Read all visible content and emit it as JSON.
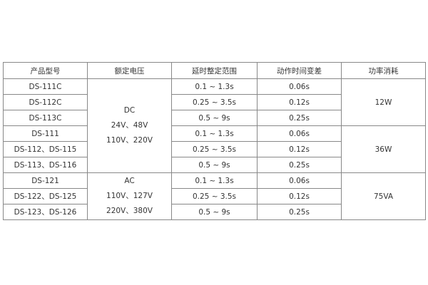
{
  "headers": [
    "产品型号",
    "额定电压",
    "延时整定范围",
    "动作时间变差",
    "功率消耗"
  ],
  "rows": [
    {
      "model": "DS-111C",
      "range": "0.1 ~ 1.3s",
      "variation": "0.06s"
    },
    {
      "model": "DS-112C",
      "range": "0.25 ~ 3.5s",
      "variation": "0.12s"
    },
    {
      "model": "DS-113C",
      "range": "0.5 ~ 9s",
      "variation": "0.25s"
    },
    {
      "model": "DS-111",
      "range": "0.1 ~ 1.3s",
      "variation": "0.06s"
    },
    {
      "model": "DS-112、DS-115",
      "range": "0.25 ~ 3.5s",
      "variation": "0.12s"
    },
    {
      "model": "DS-113、DS-116",
      "range": "0.5 ~ 9s",
      "variation": "0.25s"
    },
    {
      "model": "DS-121",
      "range": "0.1 ~ 1.3s",
      "variation": "0.06s"
    },
    {
      "model": "DS-122、DS-125",
      "range": "0.25 ~ 3.5s",
      "variation": "0.12s"
    },
    {
      "model": "DS-123、DS-126",
      "range": "0.5 ~ 9s",
      "variation": "0.25s"
    }
  ],
  "voltage": [
    {
      "lines": [
        "DC",
        "24V、48V",
        "110V、220V"
      ]
    },
    {
      "lines": [
        "AC",
        "110V、127V",
        "220V、380V"
      ]
    }
  ],
  "power": [
    "12W",
    "36W",
    "75VA"
  ]
}
